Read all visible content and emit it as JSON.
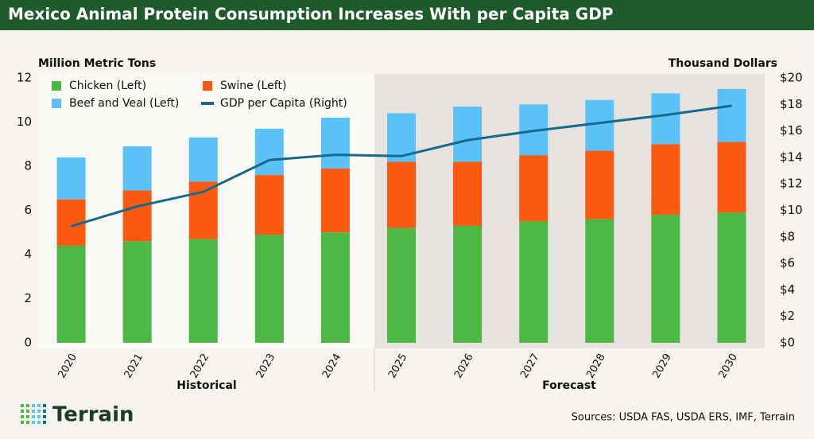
{
  "chart_data": {
    "type": "stacked_bar_line",
    "title": "Mexico Animal Protein Consumption Increases With per Capita GDP",
    "y_label": "Million Metric Tons",
    "y2_label": "Thousand Dollars",
    "period_labels": [
      "Historical",
      "Forecast"
    ],
    "categories": [
      "2020",
      "2021",
      "2022",
      "2023",
      "2024",
      "2025",
      "2026",
      "2027",
      "2028",
      "2029",
      "2030"
    ],
    "series": [
      {
        "name": "Chicken (Left)",
        "color": "#4cb944",
        "values": [
          4.4,
          4.6,
          4.7,
          4.9,
          5.0,
          5.2,
          5.3,
          5.5,
          5.6,
          5.8,
          5.9
        ]
      },
      {
        "name": "Swine (Left)",
        "color": "#fa5a0f",
        "values": [
          2.1,
          2.3,
          2.6,
          2.7,
          2.9,
          3.0,
          2.9,
          3.0,
          3.1,
          3.2,
          3.2
        ]
      },
      {
        "name": "Beef and Veal (Left)",
        "color": "#5bc2f7",
        "values": [
          1.9,
          2.0,
          2.0,
          2.1,
          2.3,
          2.2,
          2.5,
          2.3,
          2.3,
          2.3,
          2.4
        ]
      },
      {
        "name": "GDP per Capita (Right)",
        "color": "#17698a",
        "axis": "y2",
        "values": [
          8.8,
          10.3,
          11.4,
          13.8,
          14.2,
          14.1,
          15.3,
          16.0,
          16.6,
          17.2,
          17.9
        ]
      }
    ],
    "ylim": [
      0,
      12
    ],
    "yticks": [
      0,
      2,
      4,
      6,
      8,
      10,
      12
    ],
    "y2lim": [
      0,
      20
    ],
    "y2ticks": [
      {
        "value": 0,
        "label": "$0"
      },
      {
        "value": 2,
        "label": "$2"
      },
      {
        "value": 4,
        "label": "$4"
      },
      {
        "value": 6,
        "label": "$6"
      },
      {
        "value": 8,
        "label": "$8"
      },
      {
        "value": 10,
        "label": "$10"
      },
      {
        "value": 12,
        "label": "$12"
      },
      {
        "value": 14,
        "label": "$14"
      },
      {
        "value": 16,
        "label": "$16"
      },
      {
        "value": 18,
        "label": "$18"
      },
      {
        "value": 20,
        "label": "$20"
      }
    ],
    "legend": "upper left"
  },
  "brand": "Terrain",
  "sources": "Sources: USDA FAS, USDA ERS, IMF, Terrain"
}
